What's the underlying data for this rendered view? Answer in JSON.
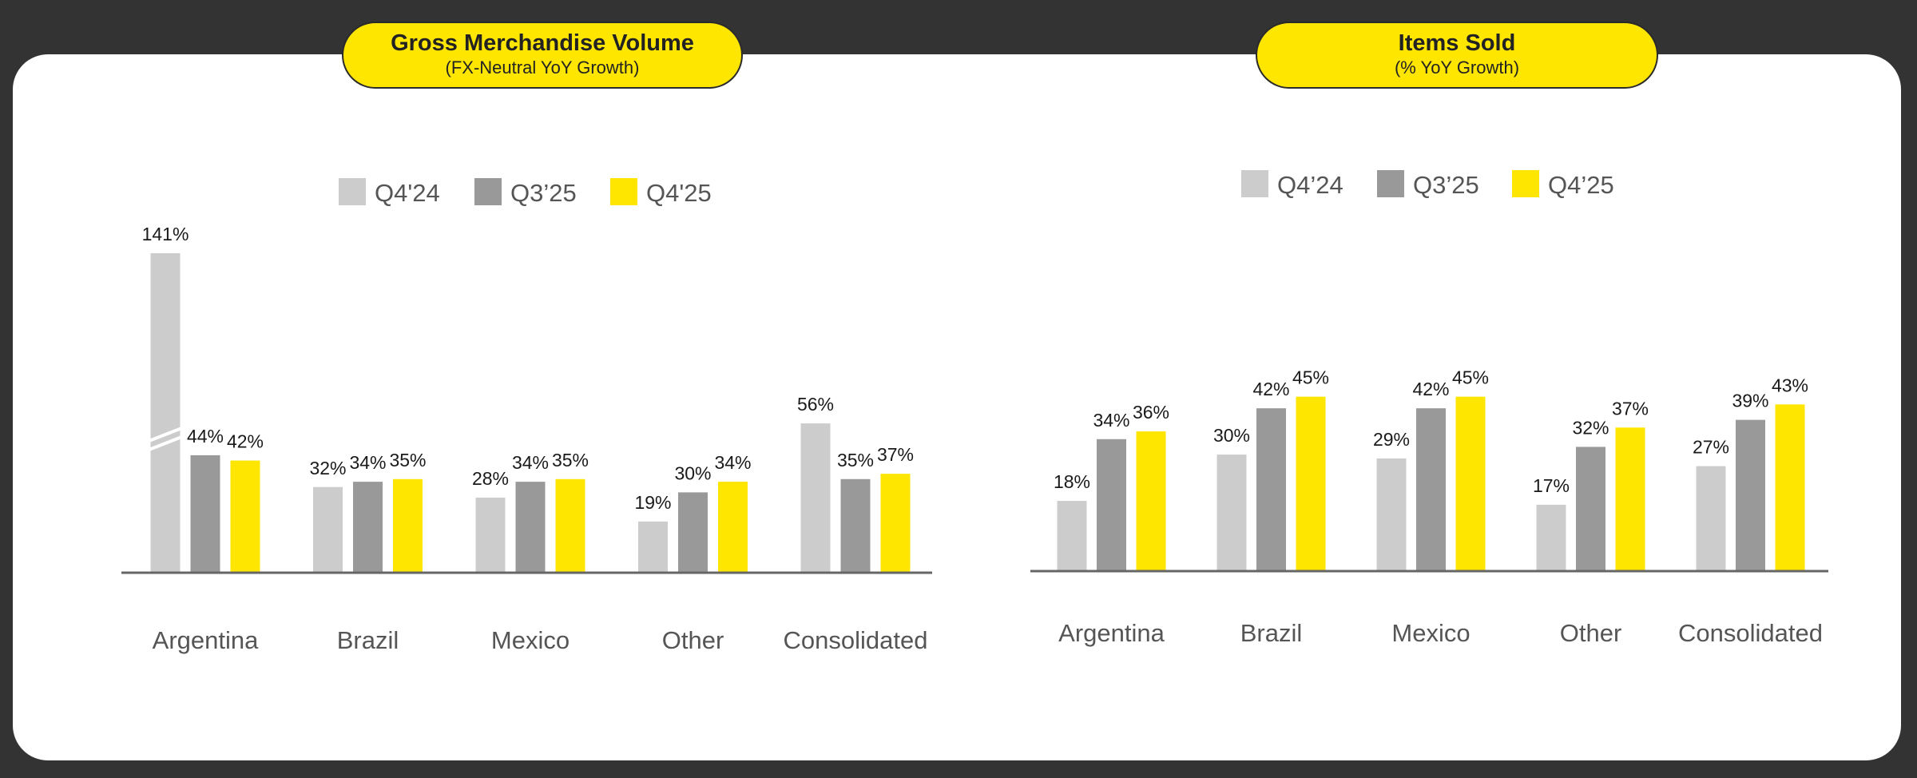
{
  "colors": {
    "q4_24": "#CCCCCC",
    "q3_25": "#999999",
    "q4_25": "#FFE600",
    "axis": "#666666"
  },
  "chart_data": [
    {
      "type": "bar",
      "title": "Gross Merchandise Volume",
      "subtitle": "(FX-Neutral YoY Growth)",
      "categories": [
        "Argentina",
        "Brazil",
        "Mexico",
        "Other",
        "Consolidated"
      ],
      "series": [
        {
          "name": "Q4'24",
          "values": [
            141,
            32,
            28,
            19,
            56
          ],
          "labels": [
            "141%",
            "32%",
            "28%",
            "19%",
            "56%"
          ]
        },
        {
          "name": "Q3’25",
          "values": [
            44,
            34,
            34,
            30,
            35
          ],
          "labels": [
            "44%",
            "34%",
            "34%",
            "30%",
            "35%"
          ]
        },
        {
          "name": "Q4'25",
          "values": [
            42,
            35,
            35,
            34,
            37
          ],
          "labels": [
            "42%",
            "35%",
            "35%",
            "34%",
            "37%"
          ]
        }
      ],
      "axis_break": {
        "category": "Argentina",
        "series": "Q4'24"
      },
      "ylim": [
        0,
        150
      ]
    },
    {
      "type": "bar",
      "title": "Items Sold",
      "subtitle": "(% YoY Growth)",
      "categories": [
        "Argentina",
        "Brazil",
        "Mexico",
        "Other",
        "Consolidated"
      ],
      "series": [
        {
          "name": "Q4’24",
          "values": [
            18,
            30,
            29,
            17,
            27
          ],
          "labels": [
            "18%",
            "30%",
            "29%",
            "17%",
            "27%"
          ]
        },
        {
          "name": "Q3’25",
          "values": [
            34,
            42,
            42,
            32,
            39
          ],
          "labels": [
            "34%",
            "42%",
            "42%",
            "32%",
            "39%"
          ]
        },
        {
          "name": "Q4’25",
          "values": [
            36,
            45,
            45,
            37,
            43
          ],
          "labels": [
            "36%",
            "45%",
            "45%",
            "37%",
            "43%"
          ]
        }
      ],
      "ylim": [
        0,
        50
      ]
    }
  ]
}
